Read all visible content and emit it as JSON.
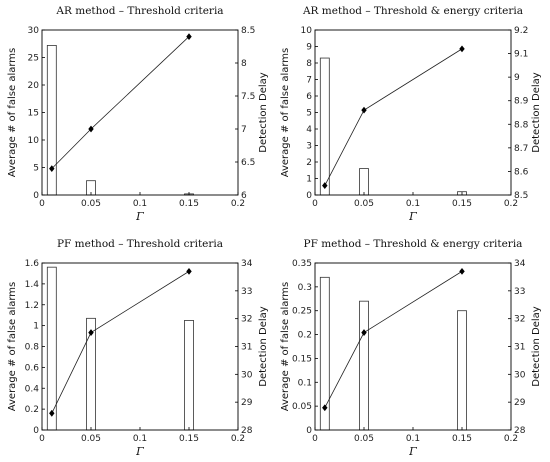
{
  "chart_data": [
    {
      "type": "bar+line",
      "title": "AR method – Threshold criteria",
      "xlabel": "Γ",
      "ylabel_left": "Average # of false alarms",
      "ylabel_right": "Detection Delay",
      "xlim": [
        0,
        0.2
      ],
      "ylim_left": [
        0,
        30
      ],
      "ylim_right": [
        6,
        8.5
      ],
      "x_ticks": [
        "0",
        "0.05",
        "0.1",
        "0.15",
        "0.2"
      ],
      "y_ticks_left": [
        "0",
        "5",
        "10",
        "15",
        "20",
        "25",
        "30"
      ],
      "y_ticks_right": [
        "6",
        "6.5",
        "7",
        "7.5",
        "8",
        "8.5"
      ],
      "bars": {
        "x": [
          0.01,
          0.05,
          0.15
        ],
        "values": [
          27.2,
          2.6,
          0.2
        ]
      },
      "line": {
        "x": [
          0.01,
          0.05,
          0.15
        ],
        "values": [
          6.4,
          7.0,
          8.4
        ]
      }
    },
    {
      "type": "bar+line",
      "title": "AR method – Threshold & energy criteria",
      "xlabel": "Γ",
      "ylabel_left": "Average # of false alarms",
      "ylabel_right": "Detection Delay",
      "xlim": [
        0,
        0.2
      ],
      "ylim_left": [
        0,
        10
      ],
      "ylim_right": [
        8.5,
        9.2
      ],
      "x_ticks": [
        "0",
        "0.05",
        "0.1",
        "0.15",
        "0.2"
      ],
      "y_ticks_left": [
        "0",
        "1",
        "2",
        "3",
        "4",
        "5",
        "6",
        "7",
        "8",
        "9",
        "10"
      ],
      "y_ticks_right": [
        "8.5",
        "8.6",
        "8.7",
        "8.8",
        "8.9",
        "9",
        "9.1",
        "9.2"
      ],
      "bars": {
        "x": [
          0.01,
          0.05,
          0.15
        ],
        "values": [
          8.3,
          1.6,
          0.2
        ]
      },
      "line": {
        "x": [
          0.01,
          0.05,
          0.15
        ],
        "values": [
          8.54,
          8.86,
          9.12
        ]
      }
    },
    {
      "type": "bar+line",
      "title": "PF method – Threshold criteria",
      "xlabel": "Γ",
      "ylabel_left": "Average # of false alarms",
      "ylabel_right": "Detection Delay",
      "xlim": [
        0,
        0.2
      ],
      "ylim_left": [
        0,
        1.6
      ],
      "ylim_right": [
        28,
        34
      ],
      "x_ticks": [
        "0",
        "0.05",
        "0.1",
        "0.15",
        "0.2"
      ],
      "y_ticks_left": [
        "0",
        "0.2",
        "0.4",
        "0.6",
        "0.8",
        "1",
        "1.2",
        "1.4",
        "1.6"
      ],
      "y_ticks_right": [
        "28",
        "29",
        "30",
        "31",
        "32",
        "33",
        "34"
      ],
      "bars": {
        "x": [
          0.01,
          0.05,
          0.15
        ],
        "values": [
          1.56,
          1.07,
          1.05
        ]
      },
      "line": {
        "x": [
          0.01,
          0.05,
          0.15
        ],
        "values": [
          28.6,
          31.5,
          33.7
        ]
      }
    },
    {
      "type": "bar+line",
      "title": "PF method – Threshold & energy criteria",
      "xlabel": "Γ",
      "ylabel_left": "Average # of false alarms",
      "ylabel_right": "Detection Delay",
      "xlim": [
        0,
        0.2
      ],
      "ylim_left": [
        0,
        0.35
      ],
      "ylim_right": [
        28,
        34
      ],
      "x_ticks": [
        "0",
        "0.05",
        "0.1",
        "0.15",
        "0.2"
      ],
      "y_ticks_left": [
        "0",
        "0.05",
        "0.1",
        "0.15",
        "0.2",
        "0.25",
        "0.3",
        "0.35"
      ],
      "y_ticks_right": [
        "28",
        "29",
        "30",
        "31",
        "32",
        "33",
        "34"
      ],
      "bars": {
        "x": [
          0.01,
          0.05,
          0.15
        ],
        "values": [
          0.32,
          0.27,
          0.25
        ]
      },
      "line": {
        "x": [
          0.01,
          0.05,
          0.15
        ],
        "values": [
          28.8,
          31.5,
          33.7
        ]
      }
    }
  ]
}
